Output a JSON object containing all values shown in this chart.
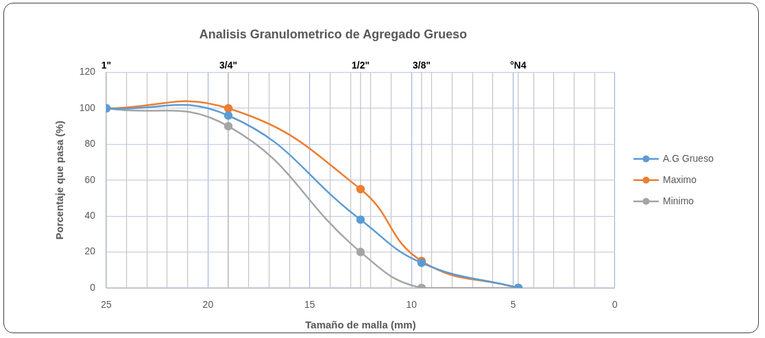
{
  "chart_data": {
    "type": "line",
    "title": "Analisis Granulometrico de Agregado Grueso",
    "xlabel": "Tamaño de malla (mm)",
    "ylabel": "Porcentaje que pasa (%)",
    "x": [
      25,
      19,
      12.5,
      9.5,
      4.75
    ],
    "series": [
      {
        "name": "A.G Grueso",
        "color": "#5b9bd5",
        "values": [
          100,
          96,
          38,
          14,
          0
        ]
      },
      {
        "name": "Maximo",
        "color": "#ed7d31",
        "values": [
          100,
          100,
          55,
          15,
          0
        ]
      },
      {
        "name": "Minimo",
        "color": "#a5a5a5",
        "values": [
          100,
          90,
          20,
          0,
          0
        ]
      }
    ],
    "xlim": [
      25,
      0
    ],
    "xticks": [
      25,
      {
        "value": 24,
        "label": null
      },
      {
        "value": 23,
        "label": null
      },
      {
        "value": 22,
        "label": null
      },
      {
        "value": 21,
        "label": null
      },
      20,
      {
        "value": 19,
        "label": null
      },
      {
        "value": 18,
        "label": null
      },
      {
        "value": 17,
        "label": null
      },
      {
        "value": 16,
        "label": null
      },
      15,
      {
        "value": 14,
        "label": null
      },
      {
        "value": 13,
        "label": null
      },
      {
        "value": 12,
        "label": null
      },
      {
        "value": 11,
        "label": null
      },
      10,
      {
        "value": 9,
        "label": null
      },
      {
        "value": 8,
        "label": null
      },
      {
        "value": 7,
        "label": null
      },
      {
        "value": 6,
        "label": null
      },
      5,
      {
        "value": 4,
        "label": null
      },
      {
        "value": 3,
        "label": null
      },
      {
        "value": 2,
        "label": null
      },
      {
        "value": 1,
        "label": null
      },
      0
    ],
    "ylim": [
      0,
      120
    ],
    "yticks": [
      0,
      20,
      40,
      60,
      80,
      100,
      120
    ],
    "ref_lines": [
      {
        "axis": "x",
        "value": 25,
        "color": "#bfbfbf"
      },
      {
        "axis": "x",
        "value": 19,
        "color": "#bfbfbf"
      },
      {
        "axis": "x",
        "value": 12.5,
        "color": "#bfbfbf"
      },
      {
        "axis": "x",
        "value": 9.5,
        "color": "#bfbfbf"
      },
      {
        "axis": "x",
        "value": 4.75,
        "color": "#bfbfbf"
      }
    ],
    "annotations": [
      {
        "text": "1\"",
        "x": 25,
        "y": 120
      },
      {
        "text": "3/4\"",
        "x": 19,
        "y": 120
      },
      {
        "text": "1/2\"",
        "x": 12.5,
        "y": 120
      },
      {
        "text": "3/8\"",
        "x": 9.5,
        "y": 120
      },
      {
        "text": "°N4",
        "x": 4.75,
        "y": 120
      }
    ],
    "grid": true,
    "legend": "right",
    "marker": "circle",
    "line_style": "solid"
  }
}
